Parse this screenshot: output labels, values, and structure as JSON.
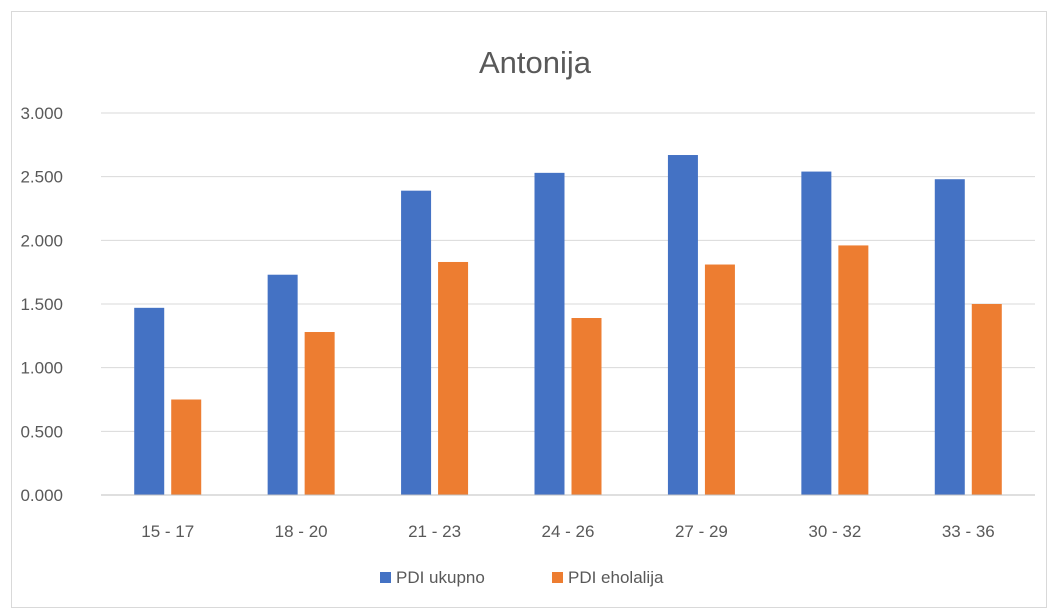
{
  "chart_data": {
    "type": "bar",
    "title": "Antonija",
    "categories": [
      "15 - 17",
      "18 - 20",
      "21 - 23",
      "24 - 26",
      "27 - 29",
      "30 - 32",
      "33 - 36"
    ],
    "series": [
      {
        "name": "PDI ukupno",
        "color": "#4472c4",
        "values": [
          1.47,
          1.73,
          2.39,
          2.53,
          2.67,
          2.54,
          2.48
        ]
      },
      {
        "name": "PDI eholalija",
        "color": "#ed7d31",
        "values": [
          0.75,
          1.28,
          1.83,
          1.39,
          1.81,
          1.96,
          1.5
        ]
      }
    ],
    "ylim": [
      0,
      3
    ],
    "yticks": [
      "0.000",
      "0.500",
      "1.000",
      "1.500",
      "2.000",
      "2.500",
      "3.000"
    ],
    "ytick_values": [
      0,
      0.5,
      1,
      1.5,
      2,
      2.5,
      3
    ],
    "grid": true,
    "legend_position": "bottom"
  }
}
